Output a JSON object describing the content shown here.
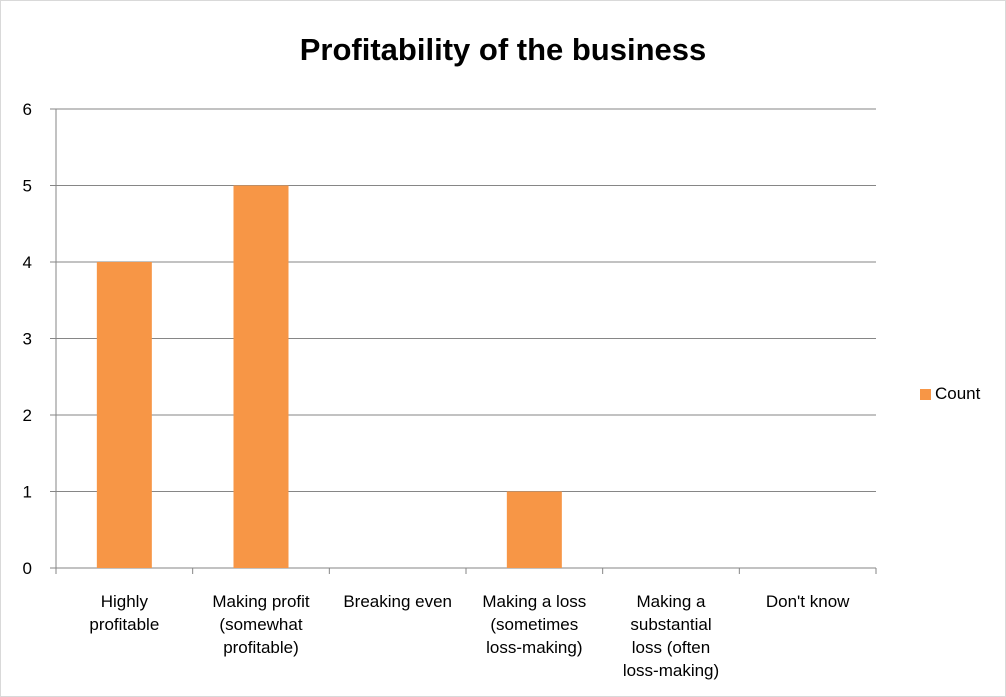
{
  "chart_data": {
    "type": "bar",
    "title": "Profitability of the business",
    "categories": [
      [
        "Highly",
        "profitable"
      ],
      [
        "Making profit",
        "(somewhat",
        "profitable)"
      ],
      [
        "Breaking even"
      ],
      [
        "Making a loss",
        "(sometimes",
        "loss-making)"
      ],
      [
        "Making a",
        "substantial",
        "loss (often",
        "loss-making)"
      ],
      [
        "Don't know"
      ]
    ],
    "series": [
      {
        "name": "Count",
        "values": [
          4,
          5,
          0,
          1,
          0,
          0
        ]
      }
    ],
    "ylim": [
      0,
      6
    ],
    "yticks": [
      0,
      1,
      2,
      3,
      4,
      5,
      6
    ],
    "grid": true,
    "legend": "right",
    "colors": {
      "bar": "#f79646",
      "grid": "#868686",
      "axis": "#868686"
    }
  }
}
